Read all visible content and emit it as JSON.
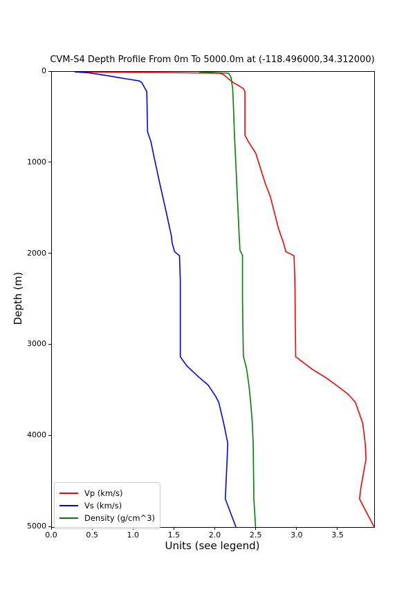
{
  "chart_data": {
    "type": "line",
    "title": "CVM-S4 Depth Profile From 0m To 5000.0m at (-118.496000,34.312000)",
    "xlabel": "Units (see legend)",
    "ylabel": "Depth (m)",
    "xlim": [
      0.0,
      3.94
    ],
    "ylim": [
      0,
      5000
    ],
    "y_inverted": true,
    "grid": false,
    "legend_position": "lower left",
    "x_ticks": {
      "values": [
        0.0,
        0.5,
        1.0,
        1.5,
        2.0,
        2.5,
        3.0,
        3.5
      ],
      "labels": [
        "0.0",
        "0.5",
        "1.0",
        "1.5",
        "2.0",
        "2.5",
        "3.0",
        "3.5"
      ]
    },
    "y_ticks": {
      "values": [
        0,
        1000,
        2000,
        3000,
        4000,
        5000
      ],
      "labels": [
        "0",
        "1000",
        "2000",
        "3000",
        "4000",
        "5000"
      ]
    },
    "series": [
      {
        "name": "Vp (km/s)",
        "color": "#ff0000",
        "points_format": "[value, depth_m]",
        "points": [
          [
            0.28,
            0
          ],
          [
            1.2,
            6
          ],
          [
            2.05,
            15
          ],
          [
            2.1,
            30
          ],
          [
            2.15,
            70
          ],
          [
            2.22,
            120
          ],
          [
            2.3,
            160
          ],
          [
            2.34,
            185
          ],
          [
            2.36,
            215
          ],
          [
            2.36,
            695
          ],
          [
            2.4,
            765
          ],
          [
            2.49,
            890
          ],
          [
            2.61,
            1230
          ],
          [
            2.67,
            1370
          ],
          [
            2.77,
            1720
          ],
          [
            2.83,
            1875
          ],
          [
            2.86,
            1975
          ],
          [
            2.96,
            2020
          ],
          [
            2.97,
            2300
          ],
          [
            2.98,
            3130
          ],
          [
            3.18,
            3265
          ],
          [
            3.35,
            3360
          ],
          [
            3.46,
            3430
          ],
          [
            3.62,
            3540
          ],
          [
            3.71,
            3630
          ],
          [
            3.8,
            3860
          ],
          [
            3.83,
            4080
          ],
          [
            3.84,
            4250
          ],
          [
            3.78,
            4550
          ],
          [
            3.76,
            4690
          ],
          [
            3.94,
            5000
          ]
        ]
      },
      {
        "name": "Vs (km/s)",
        "color": "#0000ff",
        "points_format": "[value, depth_m]",
        "points": [
          [
            0.28,
            0
          ],
          [
            0.44,
            10
          ],
          [
            0.56,
            25
          ],
          [
            0.7,
            45
          ],
          [
            0.81,
            62
          ],
          [
            0.93,
            80
          ],
          [
            1.07,
            100
          ],
          [
            1.1,
            120
          ],
          [
            1.14,
            185
          ],
          [
            1.16,
            215
          ],
          [
            1.17,
            660
          ],
          [
            1.21,
            765
          ],
          [
            1.26,
            980
          ],
          [
            1.32,
            1230
          ],
          [
            1.4,
            1550
          ],
          [
            1.46,
            1800
          ],
          [
            1.47,
            1880
          ],
          [
            1.5,
            1975
          ],
          [
            1.56,
            2020
          ],
          [
            1.57,
            2300
          ],
          [
            1.57,
            3130
          ],
          [
            1.65,
            3230
          ],
          [
            1.78,
            3340
          ],
          [
            1.91,
            3440
          ],
          [
            2.0,
            3560
          ],
          [
            2.04,
            3630
          ],
          [
            2.1,
            3860
          ],
          [
            2.15,
            4080
          ],
          [
            2.14,
            4300
          ],
          [
            2.12,
            4690
          ],
          [
            2.25,
            5000
          ]
        ]
      },
      {
        "name": "Density (g/cm^3)",
        "color": "#008000",
        "points_format": "[value, depth_m]",
        "points": [
          [
            1.8,
            0
          ],
          [
            2.16,
            15
          ],
          [
            2.19,
            60
          ],
          [
            2.21,
            185
          ],
          [
            2.22,
            400
          ],
          [
            2.23,
            660
          ],
          [
            2.26,
            1230
          ],
          [
            2.29,
            1800
          ],
          [
            2.3,
            1960
          ],
          [
            2.33,
            2015
          ],
          [
            2.33,
            2500
          ],
          [
            2.34,
            3120
          ],
          [
            2.38,
            3260
          ],
          [
            2.41,
            3450
          ],
          [
            2.43,
            3630
          ],
          [
            2.45,
            3860
          ],
          [
            2.46,
            4080
          ],
          [
            2.47,
            4700
          ],
          [
            2.49,
            5000
          ]
        ]
      }
    ]
  }
}
